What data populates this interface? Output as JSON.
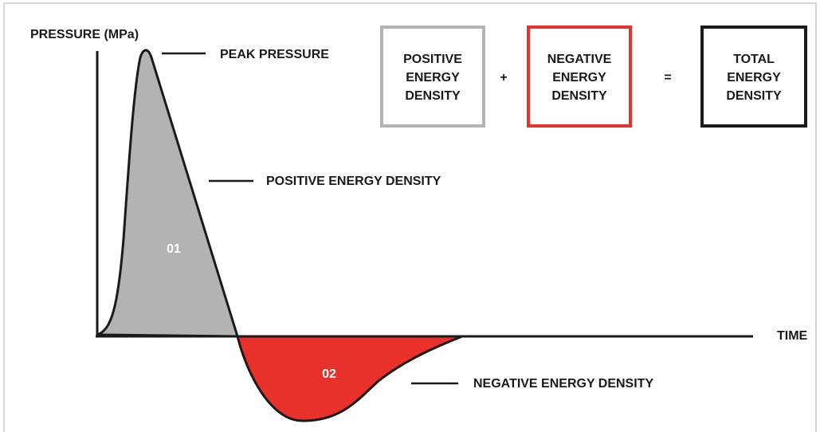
{
  "axes": {
    "y_label": "PRESSURE (MPa)",
    "x_label": "TIME"
  },
  "annotations": {
    "peak": "PEAK PRESSURE",
    "positive": "POSITIVE ENERGY DENSITY",
    "negative": "NEGATIVE ENERGY DENSITY"
  },
  "regions": {
    "positive": "01",
    "negative": "02"
  },
  "equation": {
    "positive": [
      "POSITIVE",
      "ENERGY",
      "DENSITY"
    ],
    "plus": "+",
    "negative": [
      "NEGATIVE",
      "ENERGY",
      "DENSITY"
    ],
    "equals": "=",
    "total": [
      "TOTAL",
      "ENERGY",
      "DENSITY"
    ]
  }
}
